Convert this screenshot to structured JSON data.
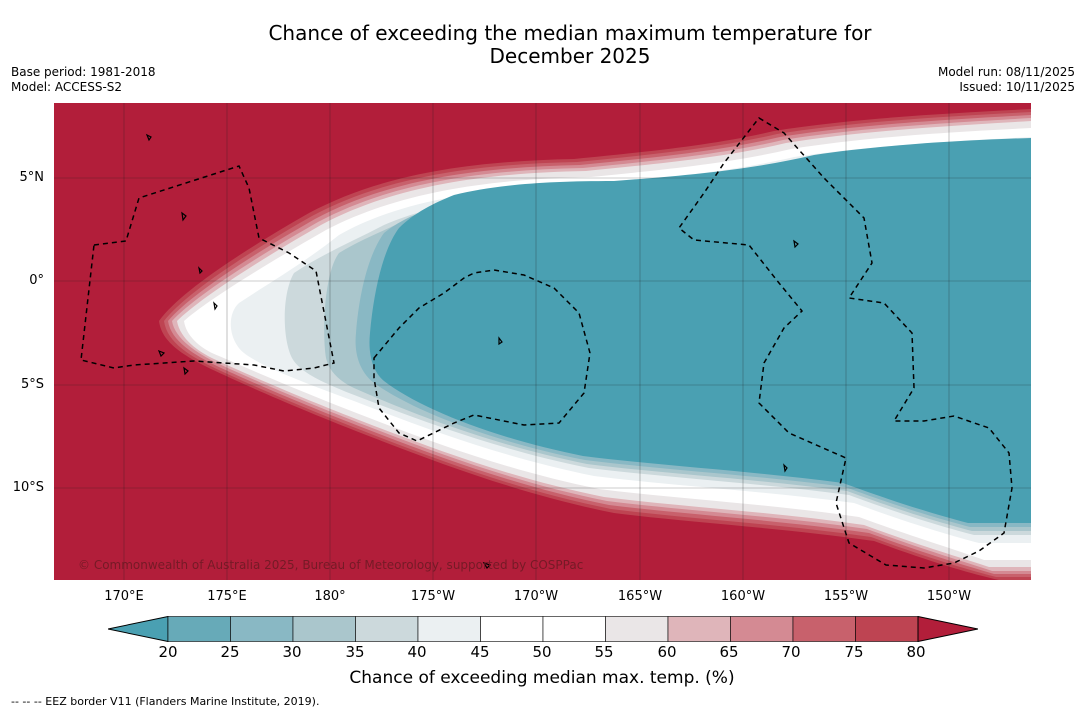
{
  "title_line1": "Chance of exceeding the median maximum temperature for",
  "title_line2": "December 2025",
  "base_period": "Base period: 1981-2018",
  "model": "Model: ACCESS-S2",
  "model_run": "Model run: 08/11/2025",
  "issued": "Issued: 10/11/2025",
  "lat_labels": [
    "5°N",
    "0°",
    "5°S",
    "10°S"
  ],
  "lon_labels": [
    "170°E",
    "175°E",
    "180°",
    "175°W",
    "170°W",
    "165°W",
    "160°W",
    "155°W",
    "150°W"
  ],
  "copyright": "© Commonwealth of Australia 2025, Bureau of Meteorology, supported by COSPPac",
  "colorbar": {
    "ticks": [
      "20",
      "25",
      "30",
      "35",
      "40",
      "45",
      "50",
      "55",
      "60",
      "65",
      "70",
      "75",
      "80"
    ],
    "colors": [
      "#67aab8",
      "#89b8c4",
      "#aac6cc",
      "#ccd9dc",
      "#ebf0f2",
      "#ffffff",
      "#ffffff",
      "#eae6e7",
      "#dfb5ba",
      "#d48a93",
      "#c8616c",
      "#be4452"
    ],
    "below_color": "#4aa0b2",
    "above_color": "#b21e3a",
    "label": "Chance of exceeding median max. temp. (%)"
  },
  "footnote": "--  --  -- EEZ border V11 (Flanders Marine Institute, 2019)."
}
